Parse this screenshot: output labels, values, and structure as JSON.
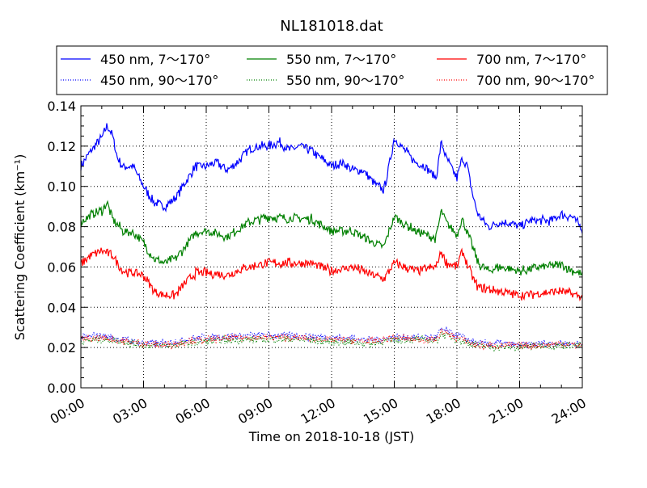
{
  "chart_data": {
    "type": "line",
    "title": "NL181018.dat",
    "xlabel": "Time on 2018-10-18 (JST)",
    "ylabel": "Scattering Coefficient (km⁻¹)",
    "xlim": [
      0,
      24
    ],
    "ylim": [
      0,
      0.14
    ],
    "grid": true,
    "legend_position": "top (outside, 3 columns)",
    "x_ticks": [
      0,
      3,
      6,
      9,
      12,
      15,
      18,
      21,
      24
    ],
    "x_tick_labels": [
      "00:00",
      "03:00",
      "06:00",
      "09:00",
      "12:00",
      "15:00",
      "18:00",
      "21:00",
      "24:00"
    ],
    "y_ticks": [
      0,
      0.02,
      0.04,
      0.06,
      0.08,
      0.1,
      0.12,
      0.14
    ],
    "y_tick_labels": [
      "0.00",
      "0.02",
      "0.04",
      "0.06",
      "0.08",
      "0.10",
      "0.12",
      "0.14"
    ],
    "series": [
      {
        "name": "450 nm, 7～170°",
        "color": "#0000ff",
        "style": "solid",
        "x": [
          0,
          0.5,
          1,
          1.25,
          1.5,
          1.75,
          2,
          2.5,
          3,
          3.5,
          4,
          4.5,
          5,
          5.5,
          6,
          6.5,
          7,
          7.5,
          8,
          8.5,
          9,
          9.5,
          10,
          10.5,
          11,
          11.5,
          12,
          12.5,
          13,
          13.5,
          14,
          14.5,
          14.75,
          15,
          15.5,
          16,
          16.5,
          17,
          17.25,
          17.5,
          18,
          18.25,
          18.5,
          18.75,
          19,
          19.5,
          20,
          20.5,
          21,
          21.5,
          22,
          22.5,
          23,
          23.5,
          24
        ],
        "y": [
          0.11,
          0.118,
          0.124,
          0.13,
          0.126,
          0.114,
          0.11,
          0.11,
          0.1,
          0.092,
          0.09,
          0.094,
          0.102,
          0.11,
          0.11,
          0.112,
          0.108,
          0.112,
          0.118,
          0.12,
          0.12,
          0.122,
          0.118,
          0.12,
          0.118,
          0.114,
          0.11,
          0.112,
          0.108,
          0.108,
          0.102,
          0.098,
          0.11,
          0.124,
          0.118,
          0.112,
          0.11,
          0.104,
          0.122,
          0.114,
          0.104,
          0.114,
          0.11,
          0.096,
          0.086,
          0.08,
          0.082,
          0.082,
          0.08,
          0.083,
          0.083,
          0.083,
          0.086,
          0.085,
          0.079
        ]
      },
      {
        "name": "550 nm, 7～170°",
        "color": "#008000",
        "style": "solid",
        "x": [
          0,
          0.5,
          1,
          1.25,
          1.5,
          2,
          2.5,
          3,
          3.5,
          4,
          4.5,
          5,
          5.5,
          6,
          7,
          8,
          9,
          10,
          11,
          12,
          13,
          14,
          14.5,
          15,
          16,
          17,
          17.25,
          17.5,
          18,
          18.25,
          18.75,
          19,
          19.5,
          20,
          21,
          22,
          23,
          24
        ],
        "y": [
          0.082,
          0.086,
          0.088,
          0.092,
          0.084,
          0.078,
          0.077,
          0.072,
          0.064,
          0.062,
          0.064,
          0.07,
          0.077,
          0.078,
          0.075,
          0.082,
          0.085,
          0.084,
          0.084,
          0.078,
          0.078,
          0.072,
          0.07,
          0.085,
          0.078,
          0.074,
          0.088,
          0.082,
          0.076,
          0.084,
          0.07,
          0.062,
          0.058,
          0.06,
          0.058,
          0.06,
          0.061,
          0.056
        ]
      },
      {
        "name": "700 nm, 7～170°",
        "color": "#ff0000",
        "style": "solid",
        "x": [
          0,
          0.5,
          1,
          1.5,
          2,
          3,
          3.5,
          4,
          4.5,
          5,
          5.5,
          6,
          7,
          8,
          9,
          10,
          11,
          12,
          13,
          14,
          14.5,
          15,
          16,
          17,
          17.25,
          17.5,
          18,
          18.25,
          18.75,
          19,
          20,
          21,
          22,
          23,
          24
        ],
        "y": [
          0.062,
          0.066,
          0.068,
          0.066,
          0.058,
          0.056,
          0.048,
          0.046,
          0.046,
          0.052,
          0.057,
          0.057,
          0.056,
          0.06,
          0.062,
          0.062,
          0.062,
          0.058,
          0.06,
          0.056,
          0.054,
          0.062,
          0.058,
          0.06,
          0.068,
          0.062,
          0.06,
          0.068,
          0.055,
          0.05,
          0.048,
          0.046,
          0.047,
          0.048,
          0.045
        ]
      },
      {
        "name": "450 nm, 90～170°",
        "color": "#0000ff",
        "style": "dotted",
        "x": [
          0,
          1,
          2,
          3,
          4,
          5,
          6,
          8,
          9,
          10,
          12,
          14,
          15,
          16,
          17,
          17.25,
          18,
          19,
          20,
          21,
          22,
          23,
          24
        ],
        "y": [
          0.025,
          0.026,
          0.024,
          0.022,
          0.022,
          0.024,
          0.025,
          0.026,
          0.026,
          0.026,
          0.025,
          0.024,
          0.025,
          0.025,
          0.025,
          0.029,
          0.026,
          0.022,
          0.022,
          0.021,
          0.022,
          0.022,
          0.022
        ]
      },
      {
        "name": "550 nm, 90～170°",
        "color": "#008000",
        "style": "dotted",
        "x": [
          0,
          1,
          2,
          3,
          4,
          5,
          6,
          8,
          9,
          10,
          12,
          14,
          15,
          16,
          17,
          17.25,
          18,
          19,
          20,
          21,
          22,
          23,
          24
        ],
        "y": [
          0.023,
          0.024,
          0.023,
          0.021,
          0.021,
          0.022,
          0.023,
          0.024,
          0.024,
          0.024,
          0.023,
          0.022,
          0.024,
          0.024,
          0.023,
          0.027,
          0.024,
          0.021,
          0.02,
          0.02,
          0.021,
          0.021,
          0.021
        ]
      },
      {
        "name": "700 nm, 90～170°",
        "color": "#ff0000",
        "style": "dotted",
        "x": [
          0,
          1,
          2,
          3,
          4,
          5,
          6,
          8,
          9,
          10,
          12,
          14,
          15,
          16,
          17,
          17.25,
          18,
          19,
          20,
          21,
          22,
          23,
          24
        ],
        "y": [
          0.024,
          0.025,
          0.023,
          0.022,
          0.021,
          0.023,
          0.024,
          0.025,
          0.025,
          0.025,
          0.024,
          0.023,
          0.025,
          0.024,
          0.024,
          0.028,
          0.025,
          0.021,
          0.021,
          0.021,
          0.021,
          0.022,
          0.021
        ]
      }
    ]
  }
}
